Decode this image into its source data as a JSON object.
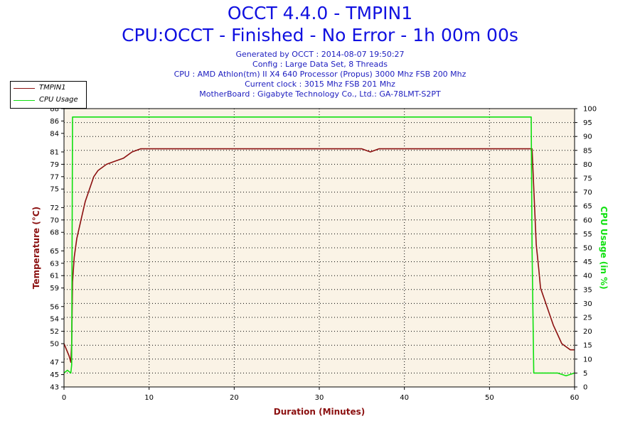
{
  "header": {
    "title": "OCCT 4.4.0 - TMPIN1",
    "subtitle": "CPU:OCCT - Finished - No Error - 1h 00m 00s",
    "info": [
      "Generated by OCCT : 2014-08-07 19:50:27",
      "Config : Large Data Set, 8 Threads",
      "CPU : AMD Athlon(tm) II X4 640 Processor (Propus) 3000 Mhz FSB 200 Mhz",
      "Current clock : 3015 Mhz FSB 201 Mhz",
      "MotherBoard : Gigabyte Technology Co., Ltd.: GA-78LMT-S2PT"
    ]
  },
  "chart_data": {
    "type": "line",
    "xlabel": "Duration (Minutes)",
    "ylabel": "Temperature (°C)",
    "y2label": "CPU Usage (in %)",
    "xlim": [
      0,
      60
    ],
    "ylim": [
      43,
      88
    ],
    "y2lim": [
      0,
      100
    ],
    "xticks": [
      0,
      10,
      20,
      30,
      40,
      50,
      60
    ],
    "yticks": [
      43,
      45,
      47,
      50,
      52,
      54,
      56,
      59,
      61,
      63,
      65,
      68,
      70,
      72,
      75,
      77,
      79,
      81,
      84,
      86,
      88
    ],
    "y2ticks": [
      0,
      5,
      10,
      15,
      20,
      25,
      30,
      35,
      40,
      45,
      50,
      55,
      60,
      65,
      70,
      75,
      80,
      85,
      90,
      95,
      100
    ],
    "grid": true,
    "legend_position": "top-left",
    "background": "#faf3e6",
    "series": [
      {
        "name": "TMPIN1",
        "axis": "left",
        "color": "#8b1010",
        "x": [
          0,
          0.3,
          0.6,
          0.8,
          0.9,
          1.0,
          1.2,
          1.5,
          2,
          2.5,
          3,
          3.5,
          4,
          5,
          6,
          7,
          8,
          9,
          10,
          12,
          15,
          20,
          25,
          30,
          35,
          36,
          37,
          40,
          45,
          50,
          54,
          55,
          55.3,
          55.5,
          55.8,
          56,
          56.5,
          57,
          57.5,
          58,
          58.5,
          59,
          59.5,
          60
        ],
        "y": [
          50,
          49,
          48,
          47,
          50,
          60,
          64,
          67,
          70,
          73,
          75,
          77,
          78,
          79,
          79.5,
          80,
          81,
          81.5,
          81.5,
          81.5,
          81.5,
          81.5,
          81.5,
          81.5,
          81.5,
          81,
          81.5,
          81.5,
          81.5,
          81.5,
          81.5,
          81.5,
          72,
          66,
          62,
          59,
          57,
          55,
          53,
          51.5,
          50,
          49.5,
          49,
          49
        ]
      },
      {
        "name": "CPU Usage",
        "axis": "right",
        "color": "#10e010",
        "x": [
          0,
          0.4,
          0.8,
          0.9,
          1.0,
          5,
          10,
          20,
          30,
          40,
          50,
          54.9,
          55.0,
          55.2,
          56,
          57,
          58,
          59,
          60
        ],
        "y": [
          5,
          6,
          5,
          8,
          97,
          97,
          97,
          97,
          97,
          97,
          97,
          97,
          50,
          5,
          5,
          5,
          5,
          4,
          5
        ]
      }
    ]
  }
}
